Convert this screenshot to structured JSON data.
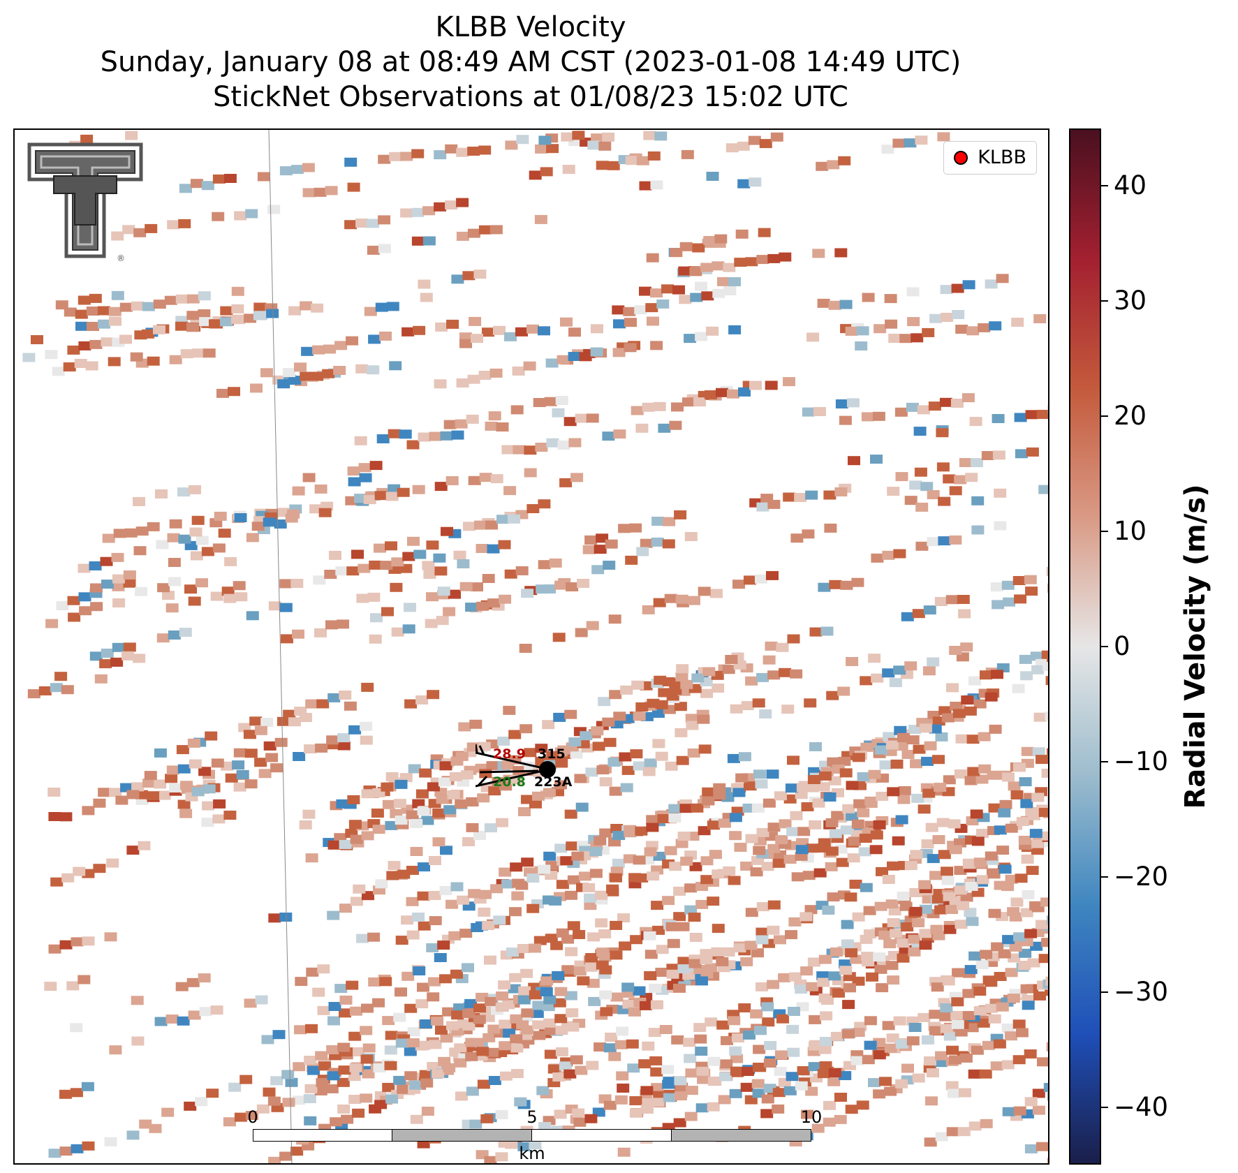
{
  "title": {
    "line1": "KLBB Velocity",
    "line2": "Sunday, January 08 at 08:49 AM CST (2023-01-08 14:49 UTC)",
    "line3": "StickNet Observations at 01/08/23 15:02 UTC"
  },
  "legend": {
    "marker_color": "#ff0000",
    "label": "KLBB"
  },
  "logo": {
    "icon": "texas-tech-double-t-logo",
    "mark": "®"
  },
  "stations": [
    {
      "id": "315",
      "temperature": "28.9",
      "temperature_color": "#b30000"
    },
    {
      "id": "223A",
      "dewpoint": "20.8",
      "dewpoint_color": "#1a7a1a"
    }
  ],
  "scalebar": {
    "ticks": [
      "0",
      "5",
      "10"
    ],
    "unit": "km"
  },
  "colorbar": {
    "label": "Radial Velocity (m/s)",
    "min": -45,
    "max": 45,
    "ticks": [
      "40",
      "30",
      "20",
      "10",
      "0",
      "−10",
      "−20",
      "−30",
      "−40"
    ],
    "tick_values": [
      40,
      30,
      20,
      10,
      0,
      -10,
      -20,
      -30,
      -40
    ],
    "stops": [
      "#1a1f4a",
      "#1f4fb8",
      "#3f86c0",
      "#9cbccd",
      "#e6e6e6",
      "#d99a85",
      "#c45a3c",
      "#a32030",
      "#4a1020"
    ]
  }
}
